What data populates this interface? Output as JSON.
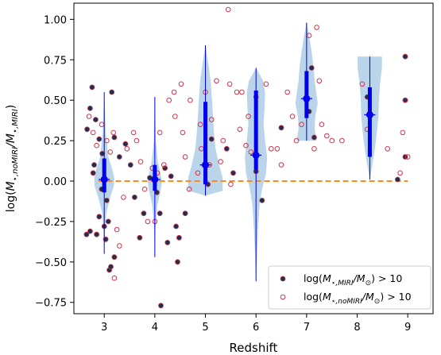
{
  "chart_data": {
    "type": "scatter",
    "xlabel": "Redshift",
    "ylabel": "log(M⋆,noMIRI/M⋆,MIRI)",
    "ylabel_parts": [
      {
        "t": "log(",
        "sub": false,
        "it": false
      },
      {
        "t": "M",
        "sub": false,
        "it": true
      },
      {
        "t": "⋆,",
        "sub": true,
        "it": true
      },
      {
        "t": "noMIRI",
        "sub": true,
        "it": true
      },
      {
        "t": "/",
        "sub": false,
        "it": true
      },
      {
        "t": "M",
        "sub": false,
        "it": true
      },
      {
        "t": "⋆,",
        "sub": true,
        "it": true
      },
      {
        "t": "MIRI",
        "sub": true,
        "it": true
      },
      {
        "t": ")",
        "sub": false,
        "it": false
      }
    ],
    "xlim": [
      2.4,
      9.5
    ],
    "ylim": [
      -0.82,
      1.1
    ],
    "xticks": [
      3,
      4,
      5,
      6,
      7,
      8,
      9
    ],
    "xtick_labels": [
      "3",
      "4",
      "5",
      "6",
      "7",
      "8",
      "9"
    ],
    "yticks": [
      -0.75,
      -0.5,
      -0.25,
      0.0,
      0.25,
      0.5,
      0.75,
      1.0
    ],
    "ytick_labels": [
      "−0.75",
      "−0.50",
      "−0.25",
      "0.00",
      "0.25",
      "0.50",
      "0.75",
      "1.00"
    ],
    "grid": false,
    "legend_position": "lower-right",
    "reference_line": {
      "y": 0.0,
      "style": "dashed",
      "color": "#ff8c1a"
    },
    "colors": {
      "filled_marker": "#1c2f4d",
      "filled_edge": "#c83a4a",
      "open_marker": "#d1344a",
      "violin_fill": "#aecde6",
      "violin_line": "#0000ee",
      "axis": "#000000"
    },
    "series": [
      {
        "name": "log(M⋆,MIRI/M⊙) > 10",
        "name_parts": [
          {
            "t": "log(",
            "sub": false,
            "it": false
          },
          {
            "t": "M",
            "sub": false,
            "it": true
          },
          {
            "t": "⋆,",
            "sub": true,
            "it": true
          },
          {
            "t": "MIRI",
            "sub": true,
            "it": true
          },
          {
            "t": "/",
            "sub": false,
            "it": true
          },
          {
            "t": "M",
            "sub": false,
            "it": true
          },
          {
            "t": "⊙",
            "sub": true,
            "it": false
          },
          {
            "t": ") > 10",
            "sub": false,
            "it": false
          }
        ],
        "marker": "filled",
        "points": [
          [
            2.65,
            -0.33
          ],
          [
            2.72,
            -0.31
          ],
          [
            2.85,
            -0.33
          ],
          [
            2.9,
            -0.22
          ],
          [
            3.0,
            -0.28
          ],
          [
            3.03,
            -0.36
          ],
          [
            3.08,
            -0.25
          ],
          [
            3.1,
            -0.55
          ],
          [
            3.13,
            -0.53
          ],
          [
            3.2,
            -0.47
          ],
          [
            3.05,
            -0.12
          ],
          [
            2.95,
            -0.05
          ],
          [
            2.78,
            0.05
          ],
          [
            2.8,
            0.1
          ],
          [
            2.66,
            0.32
          ],
          [
            2.72,
            0.45
          ],
          [
            2.76,
            0.58
          ],
          [
            2.83,
            0.38
          ],
          [
            2.9,
            0.26
          ],
          [
            2.96,
            0.17
          ],
          [
            3.15,
            0.55
          ],
          [
            3.2,
            0.27
          ],
          [
            3.3,
            0.15
          ],
          [
            3.42,
            0.23
          ],
          [
            3.52,
            0.1
          ],
          [
            3.6,
            -0.1
          ],
          [
            3.7,
            -0.35
          ],
          [
            3.78,
            -0.2
          ],
          [
            3.9,
            0.02
          ],
          [
            4.04,
            -0.07
          ],
          [
            4.1,
            -0.2
          ],
          [
            4.12,
            -0.77
          ],
          [
            4.2,
            0.08
          ],
          [
            4.25,
            -0.38
          ],
          [
            4.32,
            0.03
          ],
          [
            4.42,
            -0.28
          ],
          [
            4.45,
            -0.5
          ],
          [
            4.48,
            -0.35
          ],
          [
            4.6,
            -0.2
          ],
          [
            5.05,
            -0.02
          ],
          [
            5.12,
            0.26
          ],
          [
            5.42,
            0.2
          ],
          [
            5.55,
            0.05
          ],
          [
            6.0,
            0.06
          ],
          [
            6.12,
            -0.12
          ],
          [
            6.5,
            0.33
          ],
          [
            7.0,
            0.5
          ],
          [
            7.05,
            0.43
          ],
          [
            7.1,
            0.7
          ],
          [
            7.15,
            0.27
          ],
          [
            8.2,
            0.52
          ],
          [
            8.25,
            0.42
          ],
          [
            8.8,
            0.01
          ],
          [
            8.95,
            0.77
          ],
          [
            8.95,
            0.5
          ],
          [
            8.95,
            0.15
          ]
        ]
      },
      {
        "name": "log(M⋆,noMIRI/M⊙) > 10",
        "name_parts": [
          {
            "t": "log(",
            "sub": false,
            "it": false
          },
          {
            "t": "M",
            "sub": false,
            "it": true
          },
          {
            "t": "⋆,",
            "sub": true,
            "it": true
          },
          {
            "t": "noMIRI",
            "sub": true,
            "it": true
          },
          {
            "t": "/",
            "sub": false,
            "it": true
          },
          {
            "t": "M",
            "sub": false,
            "it": true
          },
          {
            "t": "⊙",
            "sub": true,
            "it": false
          },
          {
            "t": ") > 10",
            "sub": false,
            "it": false
          }
        ],
        "marker": "open",
        "points": [
          [
            2.7,
            0.4
          ],
          [
            2.78,
            0.3
          ],
          [
            2.85,
            0.22
          ],
          [
            2.95,
            0.35
          ],
          [
            3.05,
            0.25
          ],
          [
            3.12,
            0.18
          ],
          [
            3.18,
            0.3
          ],
          [
            3.25,
            -0.3
          ],
          [
            3.2,
            -0.6
          ],
          [
            3.3,
            -0.4
          ],
          [
            3.38,
            -0.1
          ],
          [
            3.45,
            0.2
          ],
          [
            3.58,
            0.3
          ],
          [
            3.64,
            0.25
          ],
          [
            3.72,
            0.12
          ],
          [
            3.8,
            -0.05
          ],
          [
            3.86,
            -0.25
          ],
          [
            3.95,
            0.08
          ],
          [
            4.0,
            -0.25
          ],
          [
            4.05,
            0.05
          ],
          [
            4.1,
            0.3
          ],
          [
            4.18,
            0.1
          ],
          [
            4.28,
            0.5
          ],
          [
            4.38,
            0.55
          ],
          [
            4.4,
            0.4
          ],
          [
            4.52,
            0.6
          ],
          [
            4.55,
            0.3
          ],
          [
            4.6,
            0.15
          ],
          [
            4.68,
            -0.05
          ],
          [
            4.7,
            0.5
          ],
          [
            4.85,
            0.05
          ],
          [
            4.9,
            0.35
          ],
          [
            4.92,
            0.2
          ],
          [
            5.0,
            0.55
          ],
          [
            5.08,
            0.1
          ],
          [
            5.12,
            0.38
          ],
          [
            5.22,
            0.62
          ],
          [
            5.3,
            0.12
          ],
          [
            5.35,
            0.25
          ],
          [
            5.45,
            1.06
          ],
          [
            5.48,
            0.6
          ],
          [
            5.5,
            -0.02
          ],
          [
            5.62,
            0.55
          ],
          [
            5.68,
            0.32
          ],
          [
            5.72,
            0.55
          ],
          [
            5.8,
            0.22
          ],
          [
            5.85,
            0.4
          ],
          [
            5.9,
            0.18
          ],
          [
            6.0,
            0.52
          ],
          [
            6.2,
            0.6
          ],
          [
            6.3,
            0.2
          ],
          [
            6.42,
            0.2
          ],
          [
            6.5,
            0.1
          ],
          [
            6.62,
            0.55
          ],
          [
            6.72,
            0.4
          ],
          [
            6.8,
            0.25
          ],
          [
            6.9,
            0.35
          ],
          [
            7.05,
            0.9
          ],
          [
            7.15,
            0.2
          ],
          [
            7.2,
            0.95
          ],
          [
            7.25,
            0.62
          ],
          [
            7.3,
            0.35
          ],
          [
            7.4,
            0.28
          ],
          [
            7.5,
            0.25
          ],
          [
            7.7,
            0.25
          ],
          [
            8.1,
            0.6
          ],
          [
            8.2,
            0.32
          ],
          [
            8.6,
            0.2
          ],
          [
            8.85,
            0.05
          ],
          [
            8.9,
            0.3
          ],
          [
            8.95,
            0.5
          ],
          [
            9.0,
            0.15
          ]
        ]
      }
    ],
    "violins": [
      {
        "x": 3.0,
        "median": 0.01,
        "q1": -0.07,
        "q3": 0.14,
        "min": -0.45,
        "max": 0.55,
        "profile": [
          [
            -0.45,
            0.0
          ],
          [
            -0.3,
            0.015
          ],
          [
            -0.2,
            0.04
          ],
          [
            -0.1,
            0.12
          ],
          [
            -0.03,
            0.19
          ],
          [
            0.02,
            0.2
          ],
          [
            0.07,
            0.16
          ],
          [
            0.15,
            0.08
          ],
          [
            0.3,
            0.03
          ],
          [
            0.45,
            0.012
          ],
          [
            0.55,
            0.0
          ]
        ]
      },
      {
        "x": 4.0,
        "median": 0.01,
        "q1": -0.06,
        "q3": 0.1,
        "min": -0.47,
        "max": 0.52,
        "profile": [
          [
            -0.47,
            0.0
          ],
          [
            -0.3,
            0.012
          ],
          [
            -0.15,
            0.05
          ],
          [
            -0.05,
            0.12
          ],
          [
            0.0,
            0.14
          ],
          [
            0.05,
            0.11
          ],
          [
            0.12,
            0.06
          ],
          [
            0.25,
            0.02
          ],
          [
            0.4,
            0.008
          ],
          [
            0.52,
            0.0
          ]
        ]
      },
      {
        "x": 5.0,
        "median": 0.1,
        "q1": -0.02,
        "q3": 0.49,
        "min": -0.09,
        "max": 0.84,
        "profile": [
          [
            -0.09,
            0.0
          ],
          [
            -0.06,
            0.34
          ],
          [
            0.02,
            0.34
          ],
          [
            0.1,
            0.27
          ],
          [
            0.2,
            0.2
          ],
          [
            0.3,
            0.17
          ],
          [
            0.4,
            0.15
          ],
          [
            0.5,
            0.13
          ],
          [
            0.6,
            0.11
          ],
          [
            0.7,
            0.07
          ],
          [
            0.78,
            0.03
          ],
          [
            0.84,
            0.0
          ]
        ]
      },
      {
        "x": 6.0,
        "median": 0.16,
        "q1": 0.07,
        "q3": 0.56,
        "min": -0.62,
        "max": 0.7,
        "profile": [
          [
            -0.62,
            0.0
          ],
          [
            -0.45,
            0.02
          ],
          [
            -0.3,
            0.04
          ],
          [
            -0.15,
            0.07
          ],
          [
            -0.05,
            0.12
          ],
          [
            0.05,
            0.2
          ],
          [
            0.15,
            0.22
          ],
          [
            0.25,
            0.18
          ],
          [
            0.35,
            0.15
          ],
          [
            0.45,
            0.17
          ],
          [
            0.55,
            0.18
          ],
          [
            0.62,
            0.14
          ],
          [
            0.7,
            0.0
          ]
        ]
      },
      {
        "x": 7.0,
        "median": 0.51,
        "q1": 0.39,
        "q3": 0.68,
        "min": 0.25,
        "max": 0.98,
        "profile": [
          [
            0.25,
            0.2
          ],
          [
            0.32,
            0.16
          ],
          [
            0.4,
            0.17
          ],
          [
            0.48,
            0.22
          ],
          [
            0.55,
            0.19
          ],
          [
            0.62,
            0.16
          ],
          [
            0.7,
            0.14
          ],
          [
            0.8,
            0.1
          ],
          [
            0.9,
            0.05
          ],
          [
            0.98,
            0.0
          ]
        ]
      },
      {
        "x": 8.25,
        "median": 0.41,
        "q1": 0.15,
        "q3": 0.58,
        "min": 0.01,
        "max": 0.77,
        "profile": [
          [
            0.01,
            0.0
          ],
          [
            0.1,
            0.05
          ],
          [
            0.2,
            0.1
          ],
          [
            0.3,
            0.14
          ],
          [
            0.4,
            0.17
          ],
          [
            0.5,
            0.18
          ],
          [
            0.6,
            0.2
          ],
          [
            0.7,
            0.24
          ],
          [
            0.77,
            0.24
          ]
        ]
      }
    ],
    "legend": {
      "location": "lower right"
    }
  }
}
